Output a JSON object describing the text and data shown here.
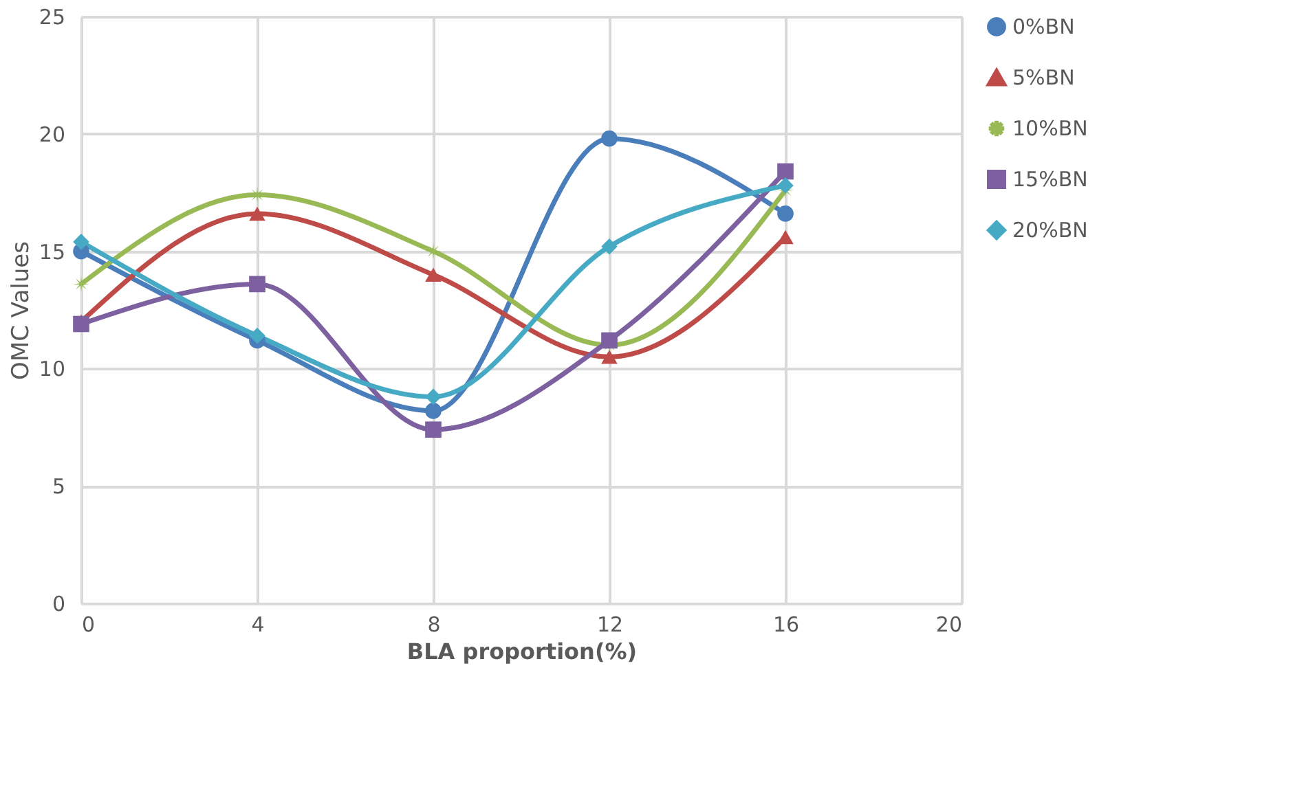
{
  "chart_data": {
    "type": "line",
    "xlabel": "BLA proportion(%)",
    "ylabel": "OMC Values",
    "x": [
      0,
      4,
      8,
      12,
      16
    ],
    "xlim": [
      0,
      20
    ],
    "xticks": [
      0,
      4,
      8,
      12,
      16,
      20
    ],
    "ylim": [
      0,
      25
    ],
    "yticks": [
      0,
      5,
      10,
      15,
      20,
      25
    ],
    "grid": true,
    "legend": "right",
    "line_style": "solid",
    "series": [
      {
        "name": "0%BN",
        "color": "#4a7ebb",
        "marker": "circle",
        "values": [
          15.0,
          11.2,
          8.2,
          19.8,
          16.6
        ]
      },
      {
        "name": "5%BN",
        "color": "#be4b48",
        "marker": "triangle",
        "values": [
          12.0,
          16.6,
          14.0,
          10.5,
          15.6
        ]
      },
      {
        "name": "10%BN",
        "color": "#98b954",
        "marker": "star",
        "values": [
          13.6,
          17.4,
          15.0,
          11.0,
          17.6
        ]
      },
      {
        "name": "15%BN",
        "color": "#7d60a0",
        "marker": "square",
        "values": [
          11.9,
          13.6,
          7.4,
          11.2,
          18.4
        ]
      },
      {
        "name": "20%BN",
        "color": "#46aac5",
        "marker": "diamond",
        "values": [
          15.4,
          11.4,
          8.8,
          15.2,
          17.8
        ]
      }
    ]
  }
}
